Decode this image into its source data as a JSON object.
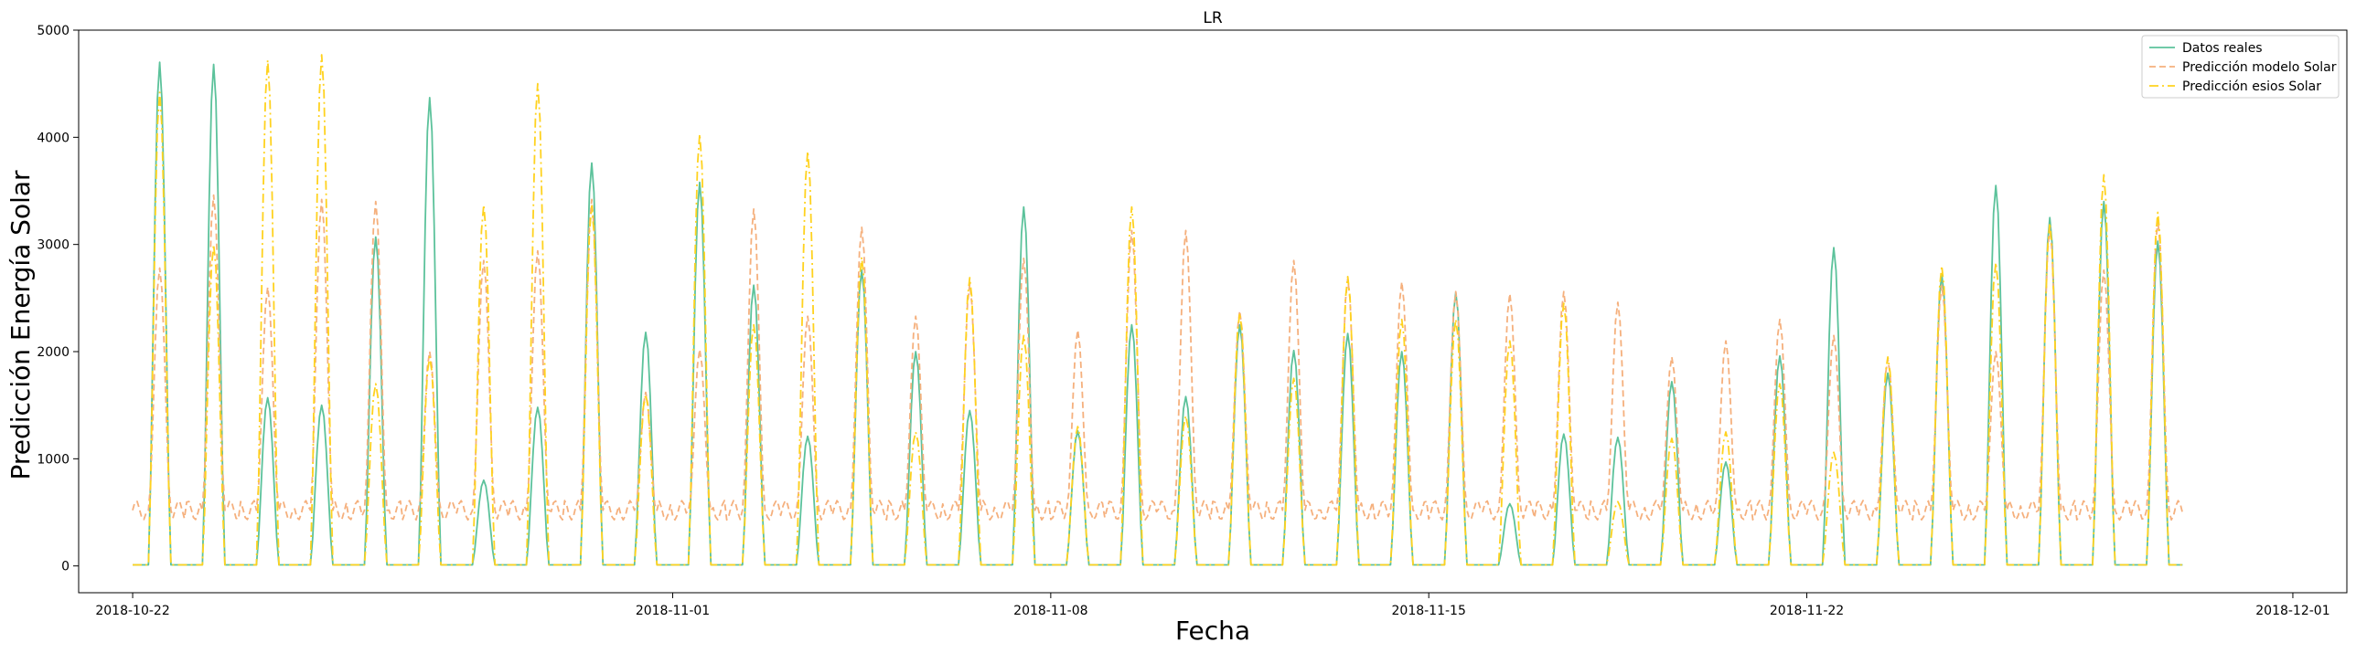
{
  "chart_data": {
    "type": "line",
    "title": "LR",
    "xlabel": "Fecha",
    "ylabel": "Predicción Energía Solar",
    "x_start": "2018-10-22",
    "x_end": "2018-11-29",
    "xlim": [
      "2018-10-21",
      "2018-12-02"
    ],
    "xticks": [
      "2018-10-22",
      "2018-11-01",
      "2018-11-08",
      "2018-11-15",
      "2018-11-22",
      "2018-12-01"
    ],
    "ylim": [
      -250,
      5000
    ],
    "yticks": [
      0,
      1000,
      2000,
      3000,
      4000,
      5000
    ],
    "grid": false,
    "legend_position": "top-right",
    "series": [
      {
        "name": "Datos reales",
        "color": "#5cc29b",
        "style": "solid",
        "daily_peaks": [
          4700,
          4680,
          1570,
          1500,
          3070,
          4370,
          800,
          1480,
          3760,
          2180,
          3580,
          2620,
          1210,
          2760,
          2000,
          1450,
          3350,
          1260,
          2250,
          1580,
          2250,
          2010,
          2170,
          2000,
          2550,
          580,
          1230,
          1200,
          1720,
          970,
          1960,
          2970,
          1800,
          2720,
          3550,
          3250,
          3400,
          3030
        ]
      },
      {
        "name": "Predicción modelo Solar",
        "color": "#f5b07d",
        "style": "dashed",
        "daily_peaks": [
          2780,
          3460,
          2600,
          3420,
          3400,
          2000,
          2850,
          2940,
          3420,
          1620,
          2020,
          3330,
          2330,
          3160,
          2330,
          2630,
          2870,
          2200,
          3130,
          3130,
          2380,
          2850,
          2680,
          2650,
          2560,
          2540,
          2560,
          2460,
          1950,
          2100,
          2300,
          2150,
          1930,
          2620,
          2000,
          3160,
          2760,
          3230
        ]
      },
      {
        "name": "Predicción esios Solar",
        "color": "#ffd21f",
        "style": "dashdot",
        "daily_peaks": [
          4420,
          3000,
          4720,
          4770,
          1700,
          1950,
          3370,
          4500,
          3360,
          1600,
          4030,
          2250,
          3870,
          2880,
          1250,
          2690,
          2150,
          1300,
          3350,
          1400,
          2360,
          1750,
          2700,
          2300,
          2300,
          2100,
          2450,
          600,
          1190,
          1250,
          1700,
          1060,
          1950,
          2800,
          2830,
          3200,
          3650,
          3300
        ]
      }
    ]
  }
}
